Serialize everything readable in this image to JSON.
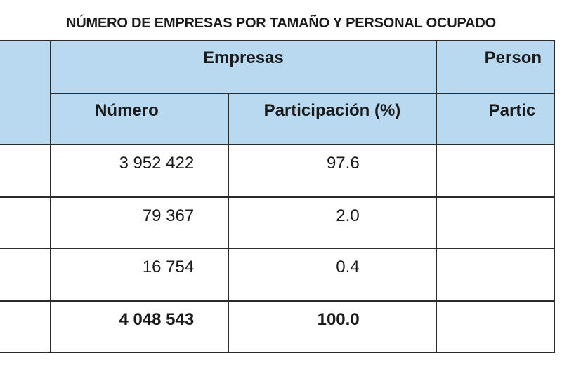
{
  "title": "NÚMERO DE EMPRESAS POR TAMAÑO Y PERSONAL OCUPADO",
  "header": {
    "group_empresas": "Empresas",
    "group_personal": "Person",
    "col_numero": "Número",
    "col_participacion": "Participación (%)",
    "col_partic_personal": "Partic"
  },
  "rows": [
    {
      "numero": "3 952 422",
      "participacion": "97.6",
      "personal": ""
    },
    {
      "numero": "79 367",
      "participacion": "2.0",
      "personal": ""
    },
    {
      "numero": "16 754",
      "participacion": "0.4",
      "personal": ""
    },
    {
      "numero": "4 048 543",
      "participacion": "100.0",
      "personal": "",
      "bold": true
    }
  ]
}
